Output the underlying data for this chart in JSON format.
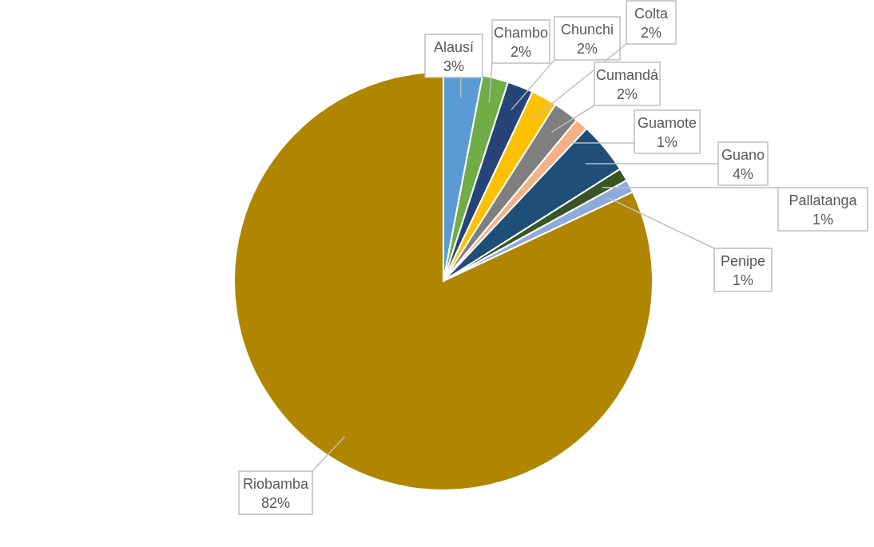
{
  "chart_data": {
    "type": "pie",
    "categories": [
      "Alausí",
      "Chambo",
      "Chunchi",
      "Colta",
      "Cumandá",
      "Guamote",
      "Guano",
      "Pallatanga",
      "Penipe",
      "Riobamba"
    ],
    "values": [
      3,
      2,
      2,
      2,
      2,
      1,
      4,
      1,
      1,
      82
    ],
    "value_labels": [
      "3%",
      "2%",
      "2%",
      "2%",
      "2%",
      "1%",
      "4%",
      "1%",
      "1%",
      "82%"
    ],
    "colors": [
      "#5b9bd5",
      "#70ad47",
      "#264478",
      "#ffc000",
      "#7f7f7f",
      "#f4b183",
      "#1f4e79",
      "#375623",
      "#8faadc",
      "#b08600"
    ]
  }
}
